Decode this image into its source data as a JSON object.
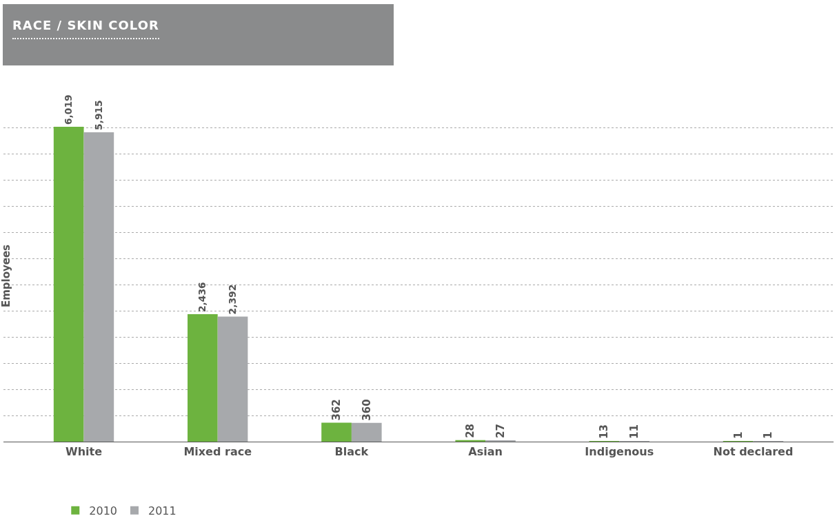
{
  "chart_data": {
    "type": "bar",
    "title": "RACE / SKIN COLOR",
    "ylabel": "Employees",
    "categories": [
      "White",
      "Mixed race",
      "Black",
      "Asian",
      "Indigenous",
      "Not declared"
    ],
    "series": [
      {
        "name": "2010",
        "color": "#6db33f",
        "values": [
          6019,
          2436,
          362,
          28,
          13,
          1
        ],
        "value_labels": [
          "6,019",
          "2,436",
          "362",
          "28",
          "13",
          "1"
        ]
      },
      {
        "name": "2011",
        "color": "#a7a9ac",
        "values": [
          5915,
          2392,
          360,
          27,
          11,
          1
        ],
        "value_labels": [
          "5,915",
          "2,392",
          "360",
          "27",
          "11",
          "1"
        ]
      }
    ],
    "tick_labels": "x",
    "grid": "y",
    "legend": "bottom left"
  }
}
